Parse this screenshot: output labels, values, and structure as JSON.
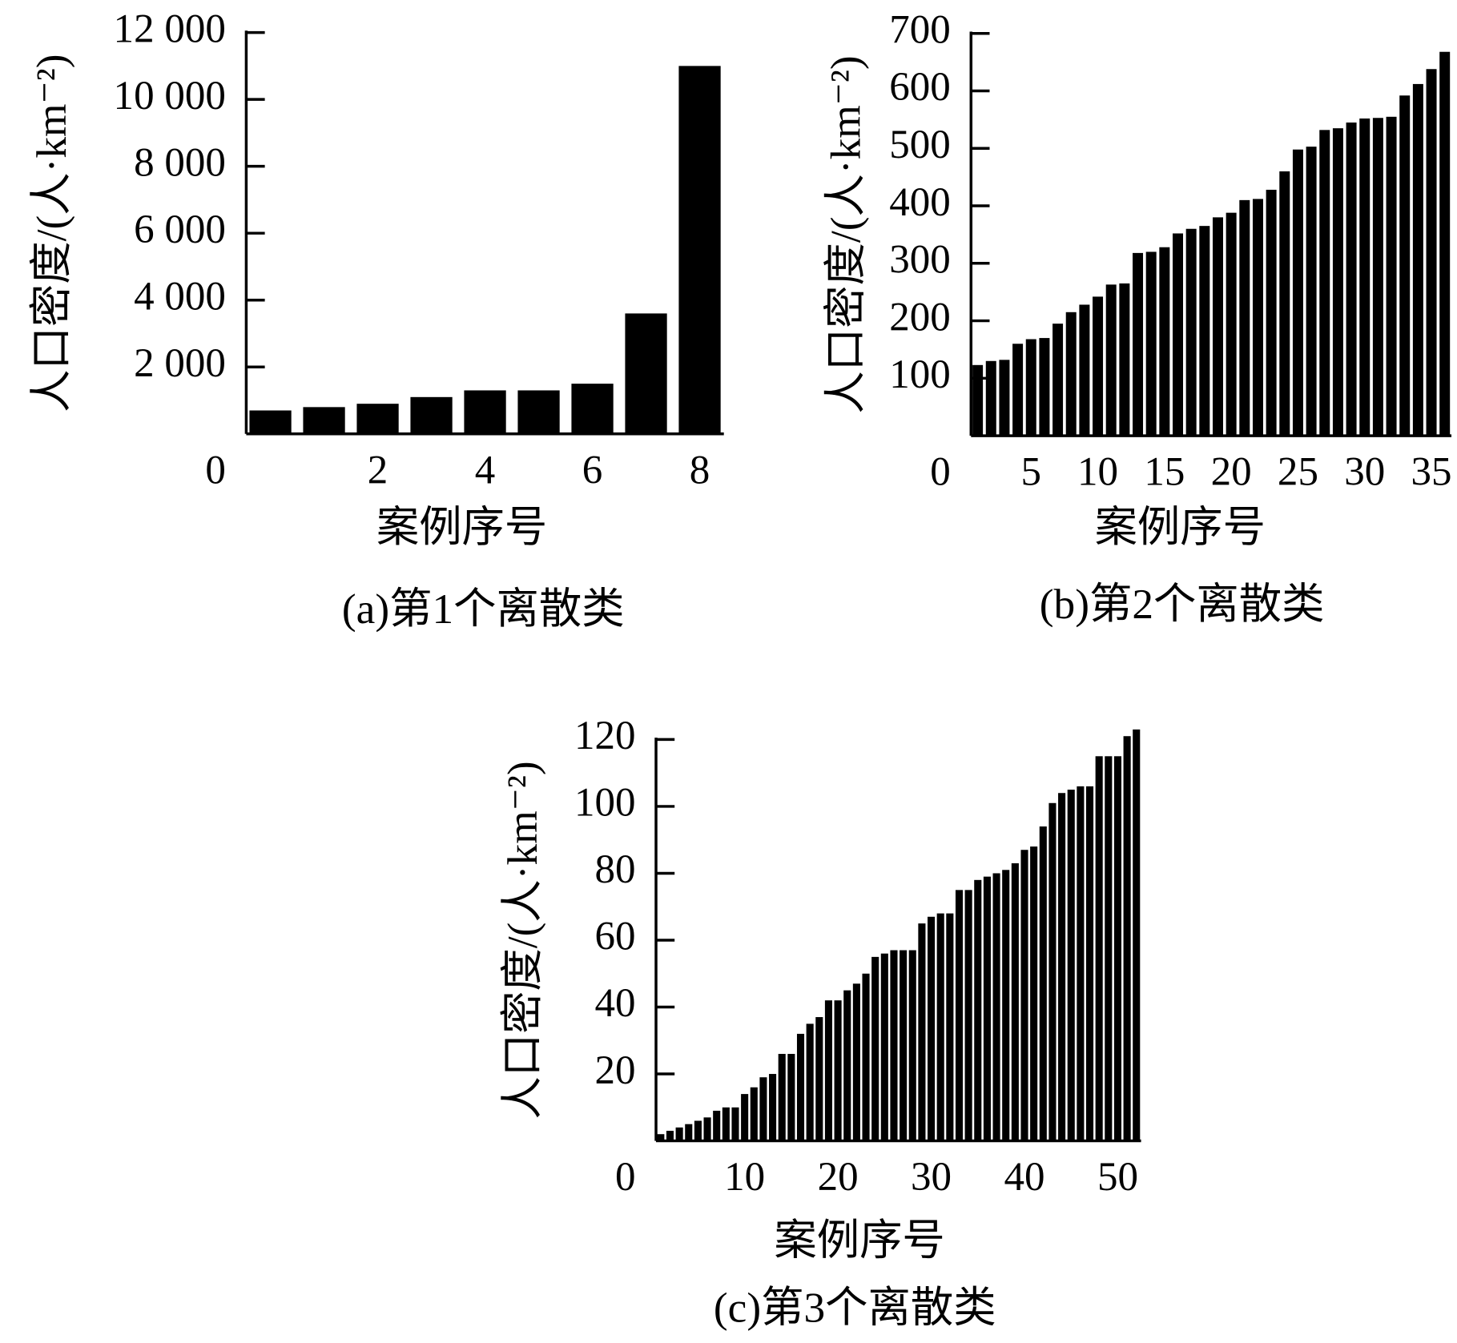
{
  "chart_data": [
    {
      "type": "bar",
      "title": "(a)第1个离散类",
      "xlabel": "案例序号",
      "ylabel": "人口密度/(人·km⁻²)",
      "color": "#000000",
      "x": [
        0,
        1,
        2,
        3,
        4,
        5,
        6,
        7,
        8
      ],
      "values": [
        700,
        800,
        900,
        1100,
        1300,
        1300,
        1500,
        3600,
        11000
      ],
      "xlim": [
        -0.45,
        8.45
      ],
      "xticks": [
        0,
        2,
        4,
        6,
        8
      ],
      "ylim": [
        0,
        12000
      ],
      "yticks": [
        {
          "value": 2000,
          "label": "2 000"
        },
        {
          "value": 4000,
          "label": "4 000"
        },
        {
          "value": 6000,
          "label": "6 000"
        },
        {
          "value": 8000,
          "label": "8 000"
        },
        {
          "value": 10000,
          "label": "10 000"
        },
        {
          "value": 12000,
          "label": "12 000"
        }
      ]
    },
    {
      "type": "bar",
      "title": "(b)第2个离散类",
      "xlabel": "案例序号",
      "ylabel": "人口密度/(人·km⁻²)",
      "color": "#000000",
      "x": [
        1,
        2,
        3,
        4,
        5,
        6,
        7,
        8,
        9,
        10,
        11,
        12,
        13,
        14,
        15,
        16,
        17,
        18,
        19,
        20,
        21,
        22,
        23,
        24,
        25,
        26,
        27,
        28,
        29,
        30,
        31,
        32,
        33,
        34,
        35,
        36
      ],
      "values": [
        123,
        130,
        132,
        160,
        168,
        170,
        195,
        215,
        228,
        242,
        263,
        265,
        318,
        320,
        328,
        352,
        360,
        365,
        380,
        388,
        410,
        412,
        428,
        460,
        498,
        503,
        532,
        535,
        545,
        552,
        553,
        555,
        592,
        612,
        638,
        668
      ],
      "xlim": [
        0.5,
        36.5
      ],
      "xticks": [
        0,
        5,
        10,
        15,
        20,
        25,
        30,
        35
      ],
      "ylim": [
        0,
        700
      ],
      "yticks": [
        100,
        200,
        300,
        400,
        500,
        600,
        700
      ]
    },
    {
      "type": "bar",
      "title": "(c)第3个离散类",
      "xlabel": "案例序号",
      "ylabel": "人口密度/(人·km⁻²)",
      "color": "#000000",
      "x": [
        1,
        2,
        3,
        4,
        5,
        6,
        7,
        8,
        9,
        10,
        11,
        12,
        13,
        14,
        15,
        16,
        17,
        18,
        19,
        20,
        21,
        22,
        23,
        24,
        25,
        26,
        27,
        28,
        29,
        30,
        31,
        32,
        33,
        34,
        35,
        36,
        37,
        38,
        39,
        40,
        41,
        42,
        43,
        44,
        45,
        46,
        47,
        48,
        49,
        50,
        51,
        52
      ],
      "values": [
        2,
        3,
        4,
        5,
        6,
        7,
        9,
        10,
        10,
        14,
        16,
        19,
        20,
        26,
        26,
        32,
        35,
        37,
        42,
        42,
        45,
        47,
        50,
        55,
        56,
        57,
        57,
        57,
        65,
        67,
        68,
        68,
        75,
        75,
        78,
        79,
        80,
        81,
        83,
        87,
        88,
        94,
        101,
        104,
        105,
        106,
        106,
        115,
        115,
        115,
        121,
        123
      ],
      "xlim": [
        0.5,
        52.5
      ],
      "xticks": [
        0,
        10,
        20,
        30,
        40,
        50
      ],
      "ylim": [
        0,
        120
      ],
      "yticks": [
        20,
        40,
        60,
        80,
        100,
        120
      ]
    }
  ]
}
